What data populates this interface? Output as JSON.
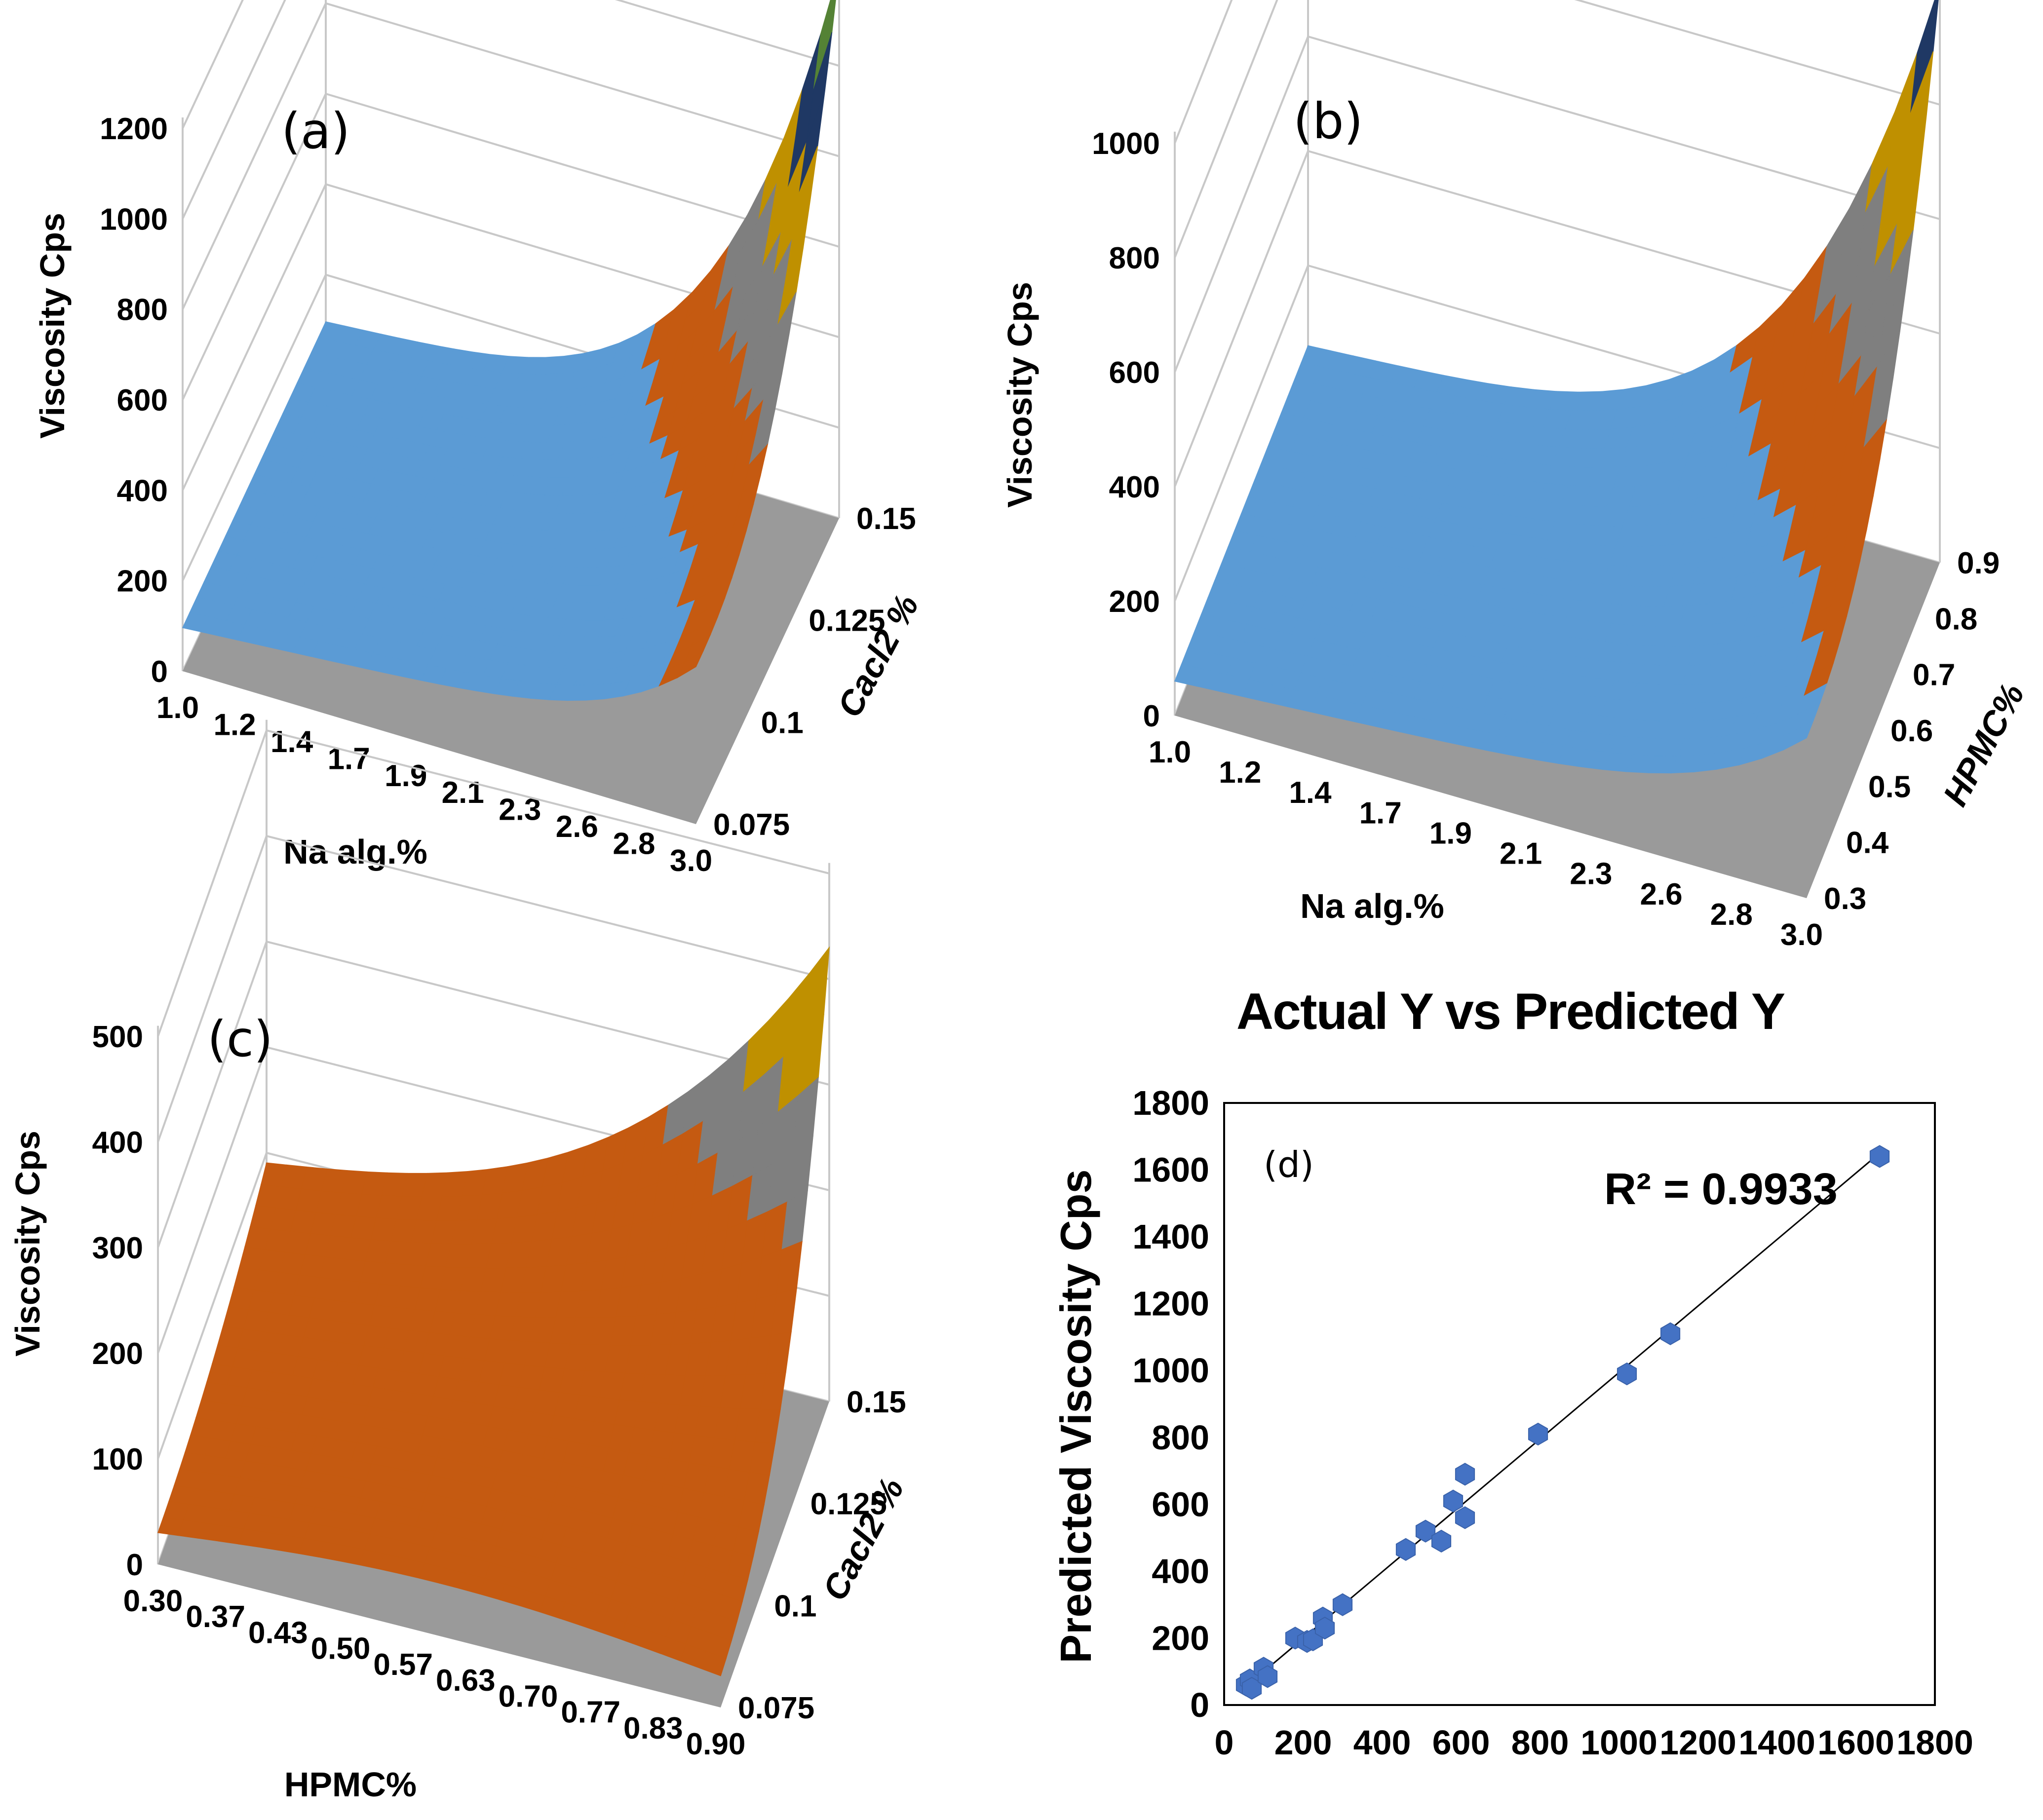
{
  "chart_data": [
    {
      "type": "surface",
      "panel_label": "(a)",
      "zlabel": "Viscosity Cps",
      "xlabel": "Na alg.%",
      "ylabel": "Cacl2 %",
      "z_ticks": [
        "0",
        "200",
        "400",
        "600",
        "800",
        "1000",
        "1200"
      ],
      "x_ticks": [
        "1.0",
        "1.2",
        "1.4",
        "1.7",
        "1.9",
        "2.1",
        "2.3",
        "2.6",
        "2.8",
        "3.0"
      ],
      "y_ticks": [
        "0.075",
        "0.1",
        "0.125",
        "0.15"
      ],
      "zlim": [
        0,
        1200
      ],
      "band_colors": [
        "#5b9bd5",
        "#c55a11",
        "#7f7f7f",
        "#bf9000",
        "#1f3864",
        "#548235"
      ],
      "z_range": [
        100,
        1250
      ]
    },
    {
      "type": "surface",
      "panel_label": "(b)",
      "zlabel": "Viscosity Cps",
      "xlabel": "Na alg.%",
      "ylabel": "HPMC%",
      "z_ticks": [
        "0",
        "200",
        "400",
        "600",
        "800",
        "1000"
      ],
      "x_ticks": [
        "1.0",
        "1.2",
        "1.4",
        "1.7",
        "1.9",
        "2.1",
        "2.3",
        "2.6",
        "2.8",
        "3.0"
      ],
      "y_ticks": [
        "0.3",
        "0.4",
        "0.5",
        "0.6",
        "0.7",
        "0.8",
        "0.9"
      ],
      "zlim": [
        0,
        1000
      ],
      "band_colors": [
        "#5b9bd5",
        "#c55a11",
        "#7f7f7f",
        "#bf9000",
        "#1f3864"
      ],
      "z_range": [
        80,
        1030
      ]
    },
    {
      "type": "surface",
      "panel_label": "(c)",
      "zlabel": "Viscosity Cps",
      "xlabel": "HPMC%",
      "ylabel": "Cacl2 %",
      "z_ticks": [
        "0",
        "100",
        "200",
        "300",
        "400",
        "500"
      ],
      "x_ticks": [
        "0.30",
        "0.37",
        "0.43",
        "0.50",
        "0.57",
        "0.63",
        "0.70",
        "0.77",
        "0.83",
        "0.90"
      ],
      "y_ticks": [
        "0.075",
        "0.1",
        "0.125",
        "0.15"
      ],
      "zlim": [
        0,
        500
      ],
      "band_colors": [
        "#c55a11",
        "#7f7f7f",
        "#bf9000",
        "#1f3864",
        "#548235"
      ],
      "z_range": [
        150,
        560
      ]
    },
    {
      "type": "scatter",
      "panel_label": "(d)",
      "title": "Actual Y vs Predicted Y",
      "ylabel": "Predicted Viscosity Cps",
      "xlabel": "",
      "xlim": [
        0,
        1800
      ],
      "ylim": [
        0,
        1800
      ],
      "x_ticks": [
        "0",
        "200",
        "400",
        "600",
        "800",
        "1000",
        "1200",
        "1400",
        "1600",
        "1800"
      ],
      "y_ticks": [
        "0",
        "200",
        "400",
        "600",
        "800",
        "1000",
        "1200",
        "1400",
        "1600",
        "1800"
      ],
      "annotation": "R² = 0.9933",
      "trendline": {
        "x0": 50,
        "y0": 50,
        "x1": 1660,
        "y1": 1650
      },
      "marker_color": "#4472c4",
      "points": [
        [
          55,
          60
        ],
        [
          65,
          75
        ],
        [
          70,
          50
        ],
        [
          100,
          110
        ],
        [
          110,
          85
        ],
        [
          180,
          200
        ],
        [
          210,
          190
        ],
        [
          225,
          195
        ],
        [
          250,
          260
        ],
        [
          255,
          230
        ],
        [
          300,
          300
        ],
        [
          460,
          465
        ],
        [
          510,
          520
        ],
        [
          550,
          490
        ],
        [
          580,
          610
        ],
        [
          610,
          690
        ],
        [
          610,
          560
        ],
        [
          795,
          810
        ],
        [
          1020,
          990
        ],
        [
          1130,
          1110
        ],
        [
          1660,
          1640
        ]
      ]
    }
  ]
}
